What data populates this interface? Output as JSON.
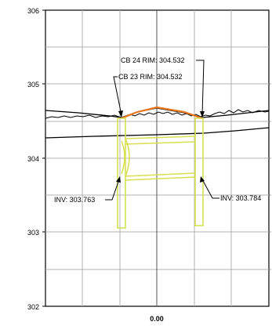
{
  "profile": {
    "y_axis_ticks": [
      "306",
      "305",
      "304",
      "303",
      "302"
    ],
    "x_axis_label": "0.00",
    "callouts": {
      "cb24_rim": "CB 24 RIM: 304.532",
      "cb23_rim": "CB 23 RIM: 304.532",
      "inv_left": "INV: 303.763",
      "inv_right": "INV: 303.784"
    }
  },
  "colors": {
    "grid": "#b0b0b0",
    "structure": "#d8df50",
    "rim_line": "#e8781e",
    "ground": "#000000"
  }
}
